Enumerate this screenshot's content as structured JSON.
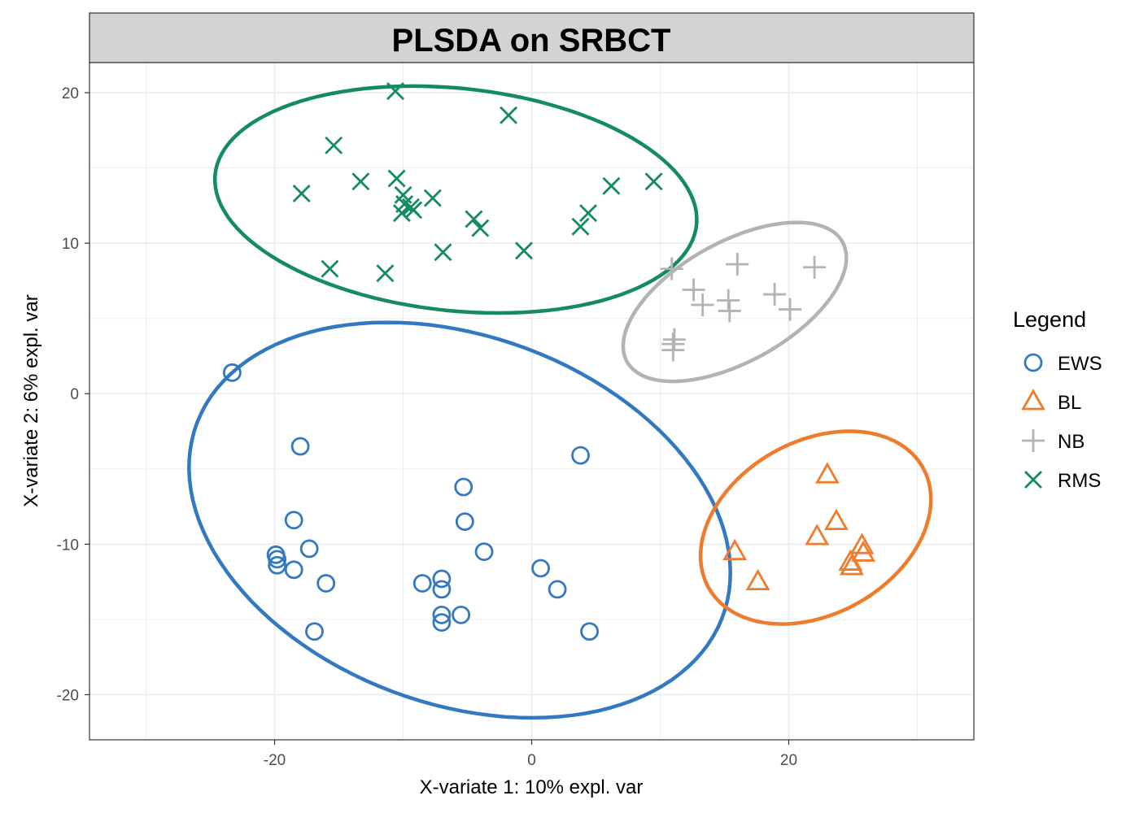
{
  "chart_data": {
    "type": "scatter",
    "title": "PLSDA on SRBCT",
    "xlabel": "X-variate 1: 10% expl. var",
    "ylabel": "X-variate 2: 6% expl. var",
    "xlim": [
      -34.4,
      34.4
    ],
    "ylim": [
      -23.0,
      22.0
    ],
    "x_ticks": [
      -20,
      0,
      20
    ],
    "x_tick_labels": [
      "-20",
      "0",
      "20"
    ],
    "y_ticks": [
      -20,
      -10,
      0,
      10,
      20
    ],
    "y_tick_labels": [
      "-20",
      "-10",
      "0",
      "10",
      "20"
    ],
    "grid": true,
    "legend": {
      "title": "Legend",
      "position": "right"
    },
    "series": [
      {
        "name": "EWS",
        "marker": "circle",
        "color": "#3379c1",
        "points": [
          [
            -23.3,
            1.4
          ],
          [
            -18.0,
            -3.5
          ],
          [
            -18.5,
            -8.4
          ],
          [
            -17.3,
            -10.3
          ],
          [
            -19.9,
            -10.7
          ],
          [
            -19.8,
            -11.0
          ],
          [
            -19.8,
            -11.4
          ],
          [
            -18.5,
            -11.7
          ],
          [
            -16.0,
            -12.6
          ],
          [
            -16.9,
            -15.8
          ],
          [
            -8.5,
            -12.6
          ],
          [
            -7.0,
            -12.3
          ],
          [
            -7.0,
            -13.0
          ],
          [
            -7.0,
            -14.7
          ],
          [
            -7.0,
            -15.2
          ],
          [
            -5.5,
            -14.7
          ],
          [
            -5.3,
            -6.2
          ],
          [
            -5.2,
            -8.5
          ],
          [
            -3.7,
            -10.5
          ],
          [
            0.7,
            -11.6
          ],
          [
            2.0,
            -13.0
          ],
          [
            3.8,
            -4.1
          ],
          [
            4.5,
            -15.8
          ]
        ],
        "ellipse": {
          "cx": -5.6,
          "cy": -8.4,
          "rx": 21.5,
          "ry": 12.4,
          "angle_deg": -14.3
        }
      },
      {
        "name": "BL",
        "marker": "triangle",
        "color": "#ef7b2d",
        "points": [
          [
            23.0,
            -5.4
          ],
          [
            23.7,
            -8.5
          ],
          [
            22.2,
            -9.5
          ],
          [
            25.7,
            -10.1
          ],
          [
            25.8,
            -10.6
          ],
          [
            24.8,
            -11.2
          ],
          [
            24.9,
            -11.5
          ],
          [
            15.8,
            -10.5
          ],
          [
            17.6,
            -12.5
          ]
        ],
        "ellipse": {
          "cx": 22.1,
          "cy": -8.9,
          "rx": 9.3,
          "ry": 5.9,
          "angle_deg": 20.3
        }
      },
      {
        "name": "NB",
        "marker": "plus",
        "color": "#b3b3b3",
        "points": [
          [
            10.9,
            8.3
          ],
          [
            16.0,
            8.6
          ],
          [
            22.0,
            8.4
          ],
          [
            12.6,
            6.9
          ],
          [
            13.3,
            5.9
          ],
          [
            15.3,
            6.2
          ],
          [
            15.4,
            5.5
          ],
          [
            18.9,
            6.6
          ],
          [
            20.1,
            5.6
          ],
          [
            11.1,
            3.6
          ],
          [
            11.0,
            3.3
          ],
          [
            11.0,
            2.9
          ]
        ],
        "ellipse": {
          "cx": 15.8,
          "cy": 6.1,
          "rx": 9.3,
          "ry": 4.1,
          "angle_deg": 23.5
        }
      },
      {
        "name": "RMS",
        "marker": "x",
        "color": "#148c60",
        "points": [
          [
            -10.6,
            20.1
          ],
          [
            -1.8,
            18.5
          ],
          [
            -15.4,
            16.5
          ],
          [
            -13.3,
            14.1
          ],
          [
            -10.5,
            14.3
          ],
          [
            -17.9,
            13.3
          ],
          [
            -10.0,
            13.2
          ],
          [
            -9.9,
            12.6
          ],
          [
            -9.4,
            12.4
          ],
          [
            -10.1,
            12.0
          ],
          [
            -7.7,
            13.0
          ],
          [
            -4.5,
            11.6
          ],
          [
            -4.0,
            11.0
          ],
          [
            -9.2,
            12.2
          ],
          [
            -15.7,
            8.3
          ],
          [
            -11.4,
            8.0
          ],
          [
            -6.9,
            9.4
          ],
          [
            -0.6,
            9.5
          ],
          [
            3.8,
            11.1
          ],
          [
            4.4,
            12.0
          ],
          [
            6.2,
            13.8
          ],
          [
            9.5,
            14.1
          ]
        ],
        "ellipse": {
          "cx": -5.9,
          "cy": 12.9,
          "rx": 18.8,
          "ry": 7.4,
          "angle_deg": -4.8
        }
      }
    ]
  }
}
